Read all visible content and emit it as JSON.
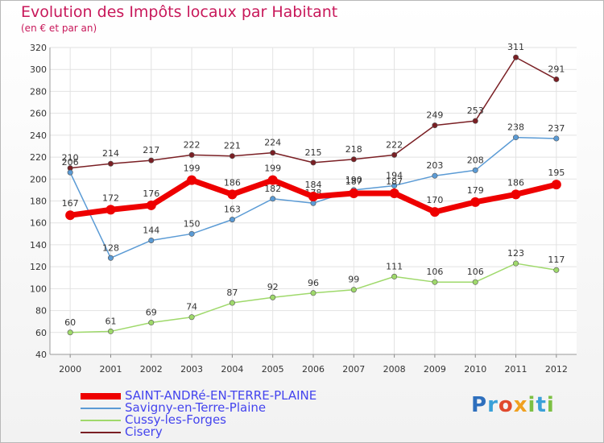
{
  "title": "Evolution des Impôts locaux par Habitant",
  "subtitle": "(en € et par an)",
  "logo": {
    "letters": [
      {
        "ch": "P",
        "color": "#2e6fbd"
      },
      {
        "ch": "r",
        "color": "#3aa0d8"
      },
      {
        "ch": "o",
        "color": "#e0492d"
      },
      {
        "ch": "x",
        "color": "#f0a020"
      },
      {
        "ch": "i",
        "color": "#7cc043"
      },
      {
        "ch": "t",
        "color": "#3aa0d8"
      },
      {
        "ch": "i",
        "color": "#7cc043"
      }
    ]
  },
  "chart_data": {
    "type": "line",
    "x": [
      2000,
      2001,
      2002,
      2003,
      2004,
      2005,
      2006,
      2007,
      2008,
      2009,
      2010,
      2011,
      2012
    ],
    "ylim": [
      40,
      320
    ],
    "yticks": [
      40,
      60,
      80,
      100,
      120,
      140,
      160,
      180,
      200,
      220,
      240,
      260,
      280,
      300,
      320
    ],
    "grid": true,
    "legend_position": "bottom-left",
    "series": [
      {
        "name": "Cisery",
        "color": "#7a1f24",
        "values": [
          210,
          214,
          217,
          222,
          221,
          224,
          215,
          218,
          222,
          249,
          253,
          311,
          291
        ]
      },
      {
        "name": "Cussy-les-Forges",
        "color": "#9fd96b",
        "values": [
          60,
          61,
          69,
          74,
          87,
          92,
          96,
          99,
          111,
          106,
          106,
          123,
          117
        ]
      },
      {
        "name": "Savigny-en-Terre-Plaine",
        "color": "#5b9bd5",
        "values": [
          206,
          128,
          144,
          150,
          163,
          182,
          178,
          190,
          194,
          203,
          208,
          238,
          237
        ]
      },
      {
        "name": "SAINT-ANDRé-EN-TERRE-PLAINE",
        "color": "#ee0000",
        "values": [
          167,
          172,
          176,
          199,
          186,
          199,
          184,
          187,
          187,
          170,
          179,
          186,
          195
        ]
      }
    ]
  }
}
